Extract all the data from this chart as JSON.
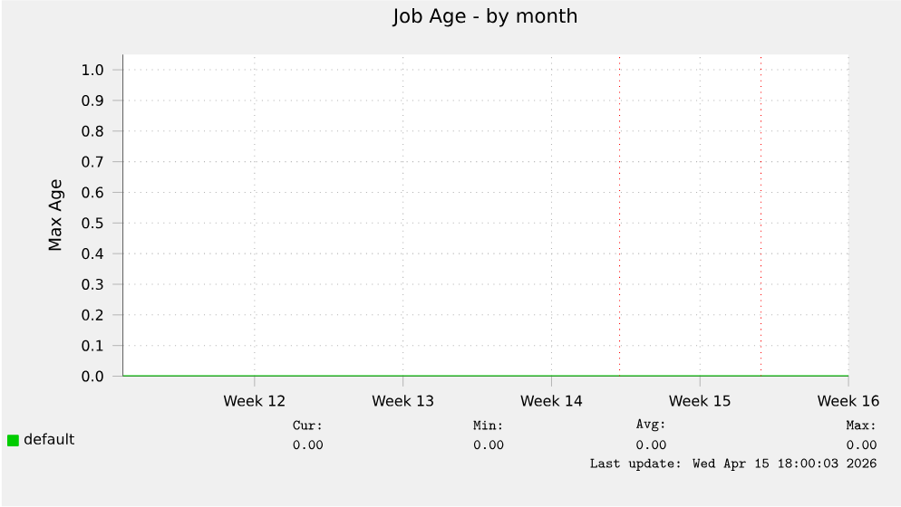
{
  "chart_data": {
    "type": "line",
    "title": "Job Age - by month",
    "ylabel": "Max Age",
    "xlim": [
      "2026-03-09T19:00",
      "2026-04-13"
    ],
    "ylim": [
      0,
      1.05
    ],
    "xticks": [
      {
        "value": "2026-03-16",
        "label": "Week 12"
      },
      {
        "value": "2026-03-23",
        "label": "Week 13"
      },
      {
        "value": "2026-03-30",
        "label": "Week 14"
      },
      {
        "value": "2026-04-06",
        "label": "Week 15"
      },
      {
        "value": "2026-04-13",
        "label": "Week 16"
      }
    ],
    "yticks": [
      {
        "value": 0,
        "label": "0.0"
      },
      {
        "value": 0.1,
        "label": "0.1"
      },
      {
        "value": 0.2,
        "label": "0.2"
      },
      {
        "value": 0.3,
        "label": "0.3"
      },
      {
        "value": 0.4,
        "label": "0.4"
      },
      {
        "value": 0.5,
        "label": "0.5"
      },
      {
        "value": 0.6,
        "label": "0.6"
      },
      {
        "value": 0.7,
        "label": "0.7"
      },
      {
        "value": 0.8,
        "label": "0.8"
      },
      {
        "value": 0.9,
        "label": "0.9"
      },
      {
        "value": 1.0,
        "label": "1.0"
      }
    ],
    "grid": true,
    "legend": "bottom",
    "marker": "none",
    "line_style": "solid",
    "series": [
      {
        "name": "default",
        "color": "#00cc00",
        "x": [
          "2026-03-09T19:00",
          "2026-04-13"
        ],
        "values": [
          0,
          0
        ]
      }
    ],
    "ref_lines": [
      {
        "axis": "x",
        "value": "2026-04-02T05:00",
        "color": "#ff0000",
        "line_style": "dotted"
      },
      {
        "axis": "x",
        "value": "2026-04-08T21:00",
        "color": "#ff0000",
        "line_style": "dotted"
      }
    ],
    "annotations": [
      "Cur:",
      "Min:",
      "Avg:",
      "Max:",
      "0.00",
      "0.00",
      "0.00",
      "0.00",
      "Last update: Wed Apr 15 18:00:03 2026"
    ]
  }
}
